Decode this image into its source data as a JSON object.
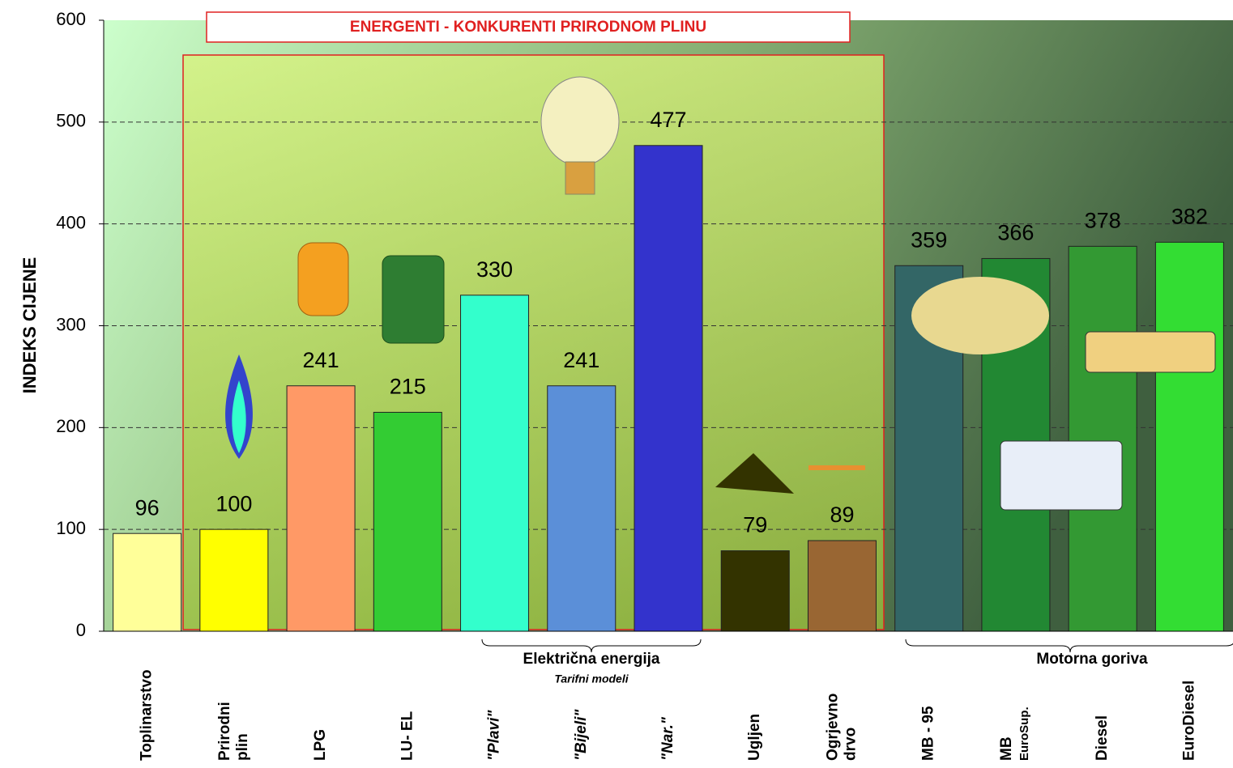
{
  "chart_data": {
    "type": "bar",
    "title": "ENERGENTI - KONKURENTI PRIRODNOM PLINU",
    "y_label": "INDEKS CIJENE",
    "categories": [
      [
        "Toplinarstvo"
      ],
      [
        "Prirodni",
        "plin"
      ],
      [
        "LPG"
      ],
      [
        "LU- EL"
      ],
      [
        "\"Plavi\""
      ],
      [
        "\"Bijeli\""
      ],
      [
        "\"Nar.\""
      ],
      [
        "Ugljen"
      ],
      [
        "Ogrjevno",
        "drvo"
      ],
      [
        "MB - 95"
      ],
      [
        "MB",
        "EuroSup."
      ],
      [
        "Diesel"
      ],
      [
        "EuroDiesel"
      ]
    ],
    "values": [
      96,
      100,
      241,
      215,
      330,
      241,
      477,
      79,
      89,
      359,
      366,
      378,
      382
    ],
    "colors": [
      "#ffff99",
      "#ffff00",
      "#ff9966",
      "#33cc33",
      "#33ffcc",
      "#5b8fd8",
      "#3333cc",
      "#333300",
      "#996633",
      "#336666",
      "#228833",
      "#339933",
      "#33dd33"
    ],
    "groups": [
      {
        "label": "Električna energija",
        "sublabel": "Tarifni modeli"
      },
      {
        "label": "Motorna goriva"
      }
    ],
    "ylim": [
      0,
      600
    ],
    "yticks": [
      0,
      100,
      200,
      300,
      400,
      500,
      600
    ],
    "grid": true
  }
}
